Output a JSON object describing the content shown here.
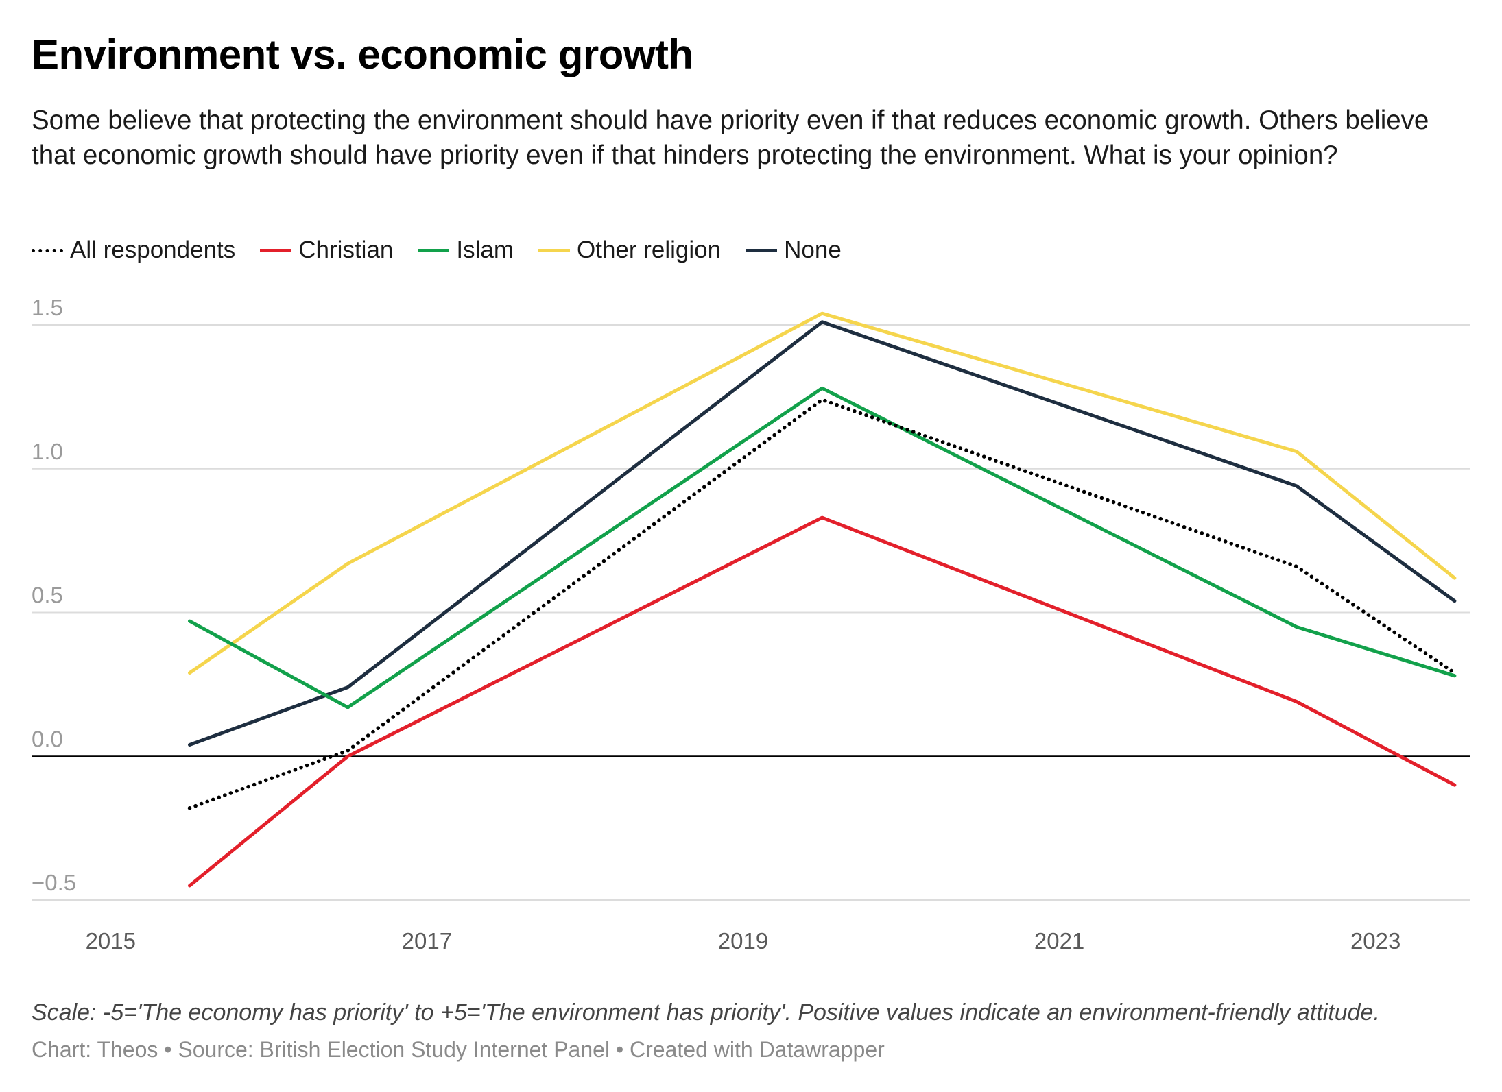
{
  "chart_data": {
    "type": "line",
    "title": "Environment vs. economic growth",
    "subtitle": "Some believe that protecting the environment should have priority even if that reduces economic growth. Others believe that economic growth should have priority even if that hinders protecting the environment. What is your opinion?",
    "x": [
      2015.5,
      2016.5,
      2019.5,
      2022.5,
      2023.5
    ],
    "x_ticks": [
      "2015",
      "2017",
      "2019",
      "2021",
      "2023"
    ],
    "y_ticks": [
      "1.5",
      "1.0",
      "0.5",
      "0.0",
      "−0.5"
    ],
    "y_tick_values": [
      1.5,
      1.0,
      0.5,
      0.0,
      -0.5
    ],
    "ylim": [
      -0.5,
      1.5
    ],
    "xlim": [
      2014.5,
      2023.6
    ],
    "grid": true,
    "legend_position": "top-left",
    "series": [
      {
        "name": "All respondents",
        "color": "#000000",
        "style": "dotted",
        "values": [
          -0.18,
          0.02,
          1.24,
          0.66,
          0.29
        ]
      },
      {
        "name": "Christian",
        "color": "#e3202b",
        "style": "solid",
        "values": [
          -0.45,
          0.0,
          0.83,
          0.19,
          -0.1
        ]
      },
      {
        "name": "Islam",
        "color": "#12a14b",
        "style": "solid",
        "values": [
          0.47,
          0.17,
          1.28,
          0.45,
          0.28
        ]
      },
      {
        "name": "Other religion",
        "color": "#f5d54d",
        "style": "solid",
        "values": [
          0.29,
          0.67,
          1.54,
          1.06,
          0.62
        ]
      },
      {
        "name": "None",
        "color": "#1e2e40",
        "style": "solid",
        "values": [
          0.04,
          0.24,
          1.51,
          0.94,
          0.54
        ]
      }
    ]
  },
  "footer": {
    "note": "Scale: -5='The economy has priority' to +5='The environment has priority'. Positive values indicate an environment-friendly attitude.",
    "chart_by": "Chart: Theos",
    "source": "Source: British Election Study Internet Panel",
    "created_with": "Created with Datawrapper",
    "separator": " • "
  }
}
